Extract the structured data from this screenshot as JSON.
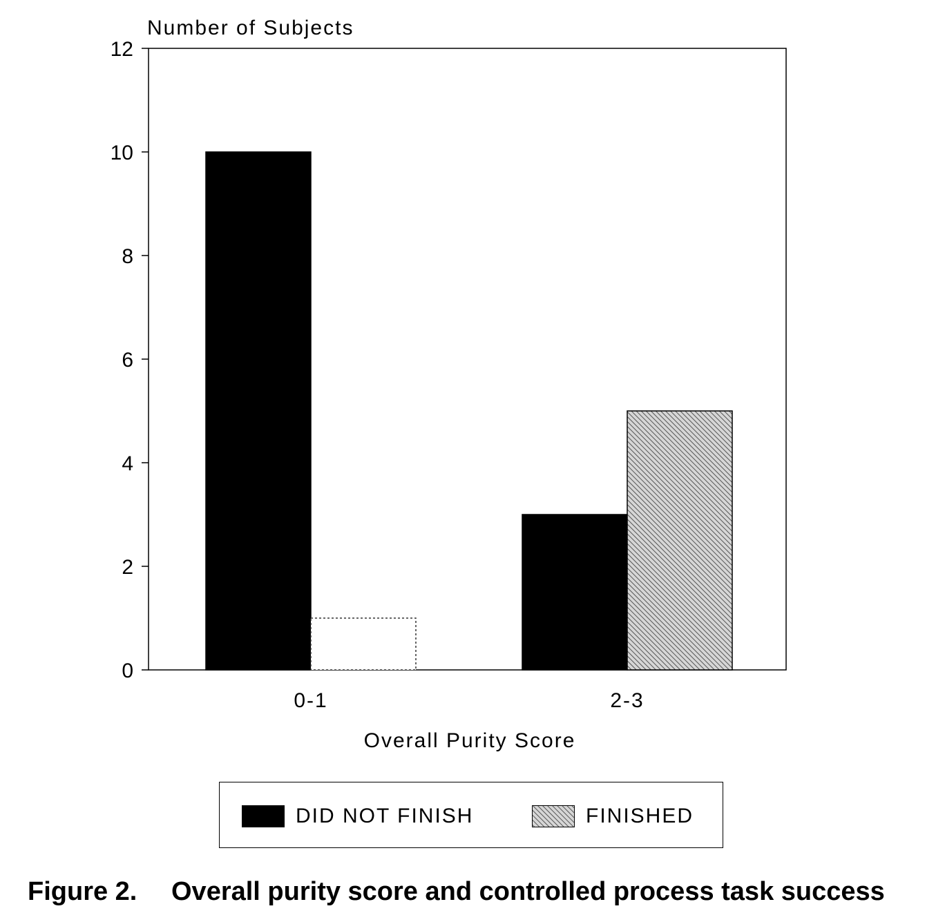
{
  "chart_data": {
    "type": "bar",
    "ylabel": "Number of Subjects",
    "xlabel": "Overall Purity Score",
    "categories": [
      "0-1",
      "2-3"
    ],
    "series": [
      {
        "name": "DID NOT FINISH",
        "values": [
          10,
          3
        ],
        "color": "#000000",
        "pattern": "solid"
      },
      {
        "name": "FINISHED",
        "values": [
          1,
          5
        ],
        "color": "#b0b0b0",
        "pattern": "hatched"
      }
    ],
    "ylim": [
      0,
      12
    ],
    "yticks": [
      "0",
      "2",
      "4",
      "6",
      "8",
      "10",
      "12"
    ],
    "grid": false,
    "legend_position": "bottom"
  },
  "caption": {
    "number": "Figure 2.",
    "text": "Overall purity score and controlled process task success"
  }
}
